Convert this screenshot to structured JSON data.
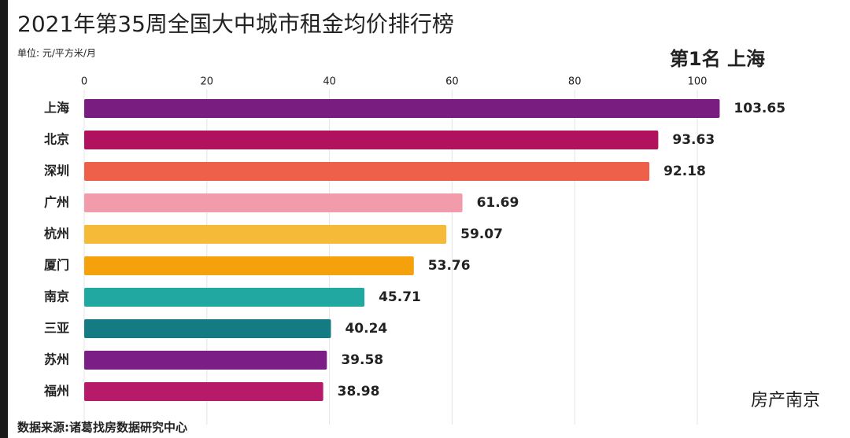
{
  "chart_data": {
    "type": "bar",
    "orientation": "horizontal",
    "title": "2021年第35周全国大中城市租金均价排行榜",
    "subtitle": "单位: 元/平方米/月",
    "rank_label": "第1名 上海",
    "source": "数据来源:诸葛找房数据研究中心",
    "watermark": "房产南京",
    "categories": [
      "上海",
      "北京",
      "深圳",
      "广州",
      "杭州",
      "厦门",
      "南京",
      "三亚",
      "苏州",
      "福州"
    ],
    "values": [
      103.65,
      93.63,
      92.18,
      61.69,
      59.07,
      53.76,
      45.71,
      40.24,
      39.58,
      38.98
    ],
    "colors": [
      "#7a1d80",
      "#b0125e",
      "#ef604a",
      "#f29bab",
      "#f5bb38",
      "#f4a10c",
      "#20a8a1",
      "#147b82",
      "#7b1f86",
      "#b71a69"
    ],
    "xlim": [
      0,
      100
    ],
    "xticks": [
      0,
      20,
      40,
      60,
      80,
      100
    ],
    "grid": true
  }
}
